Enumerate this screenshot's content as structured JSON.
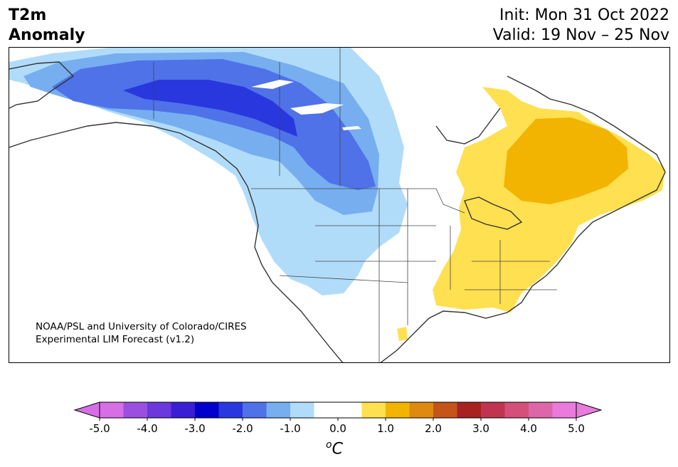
{
  "header": {
    "title_line1": "T2m",
    "title_line2": "Anomaly",
    "init_line": "Init: Mon 31 Oct 2022",
    "valid_line": "Valid: 19 Nov – 25 Nov"
  },
  "map": {
    "region": "North America",
    "credit_line1": "NOAA/PSL and University of Colorado/CIRES",
    "credit_line2": "Experimental LIM Forecast (v1.2)"
  },
  "colorbar": {
    "unit_base": "C",
    "unit_sup": "o",
    "tick_labels": [
      "-5.0",
      "-4.0",
      "-3.0",
      "-2.0",
      "-1.0",
      "0.0",
      "1.0",
      "2.0",
      "3.0",
      "4.0",
      "5.0"
    ],
    "colors": [
      "#d66ee6",
      "#9a4fe0",
      "#6a38dc",
      "#3a1ed4",
      "#0000cc",
      "#2838de",
      "#4f72e8",
      "#76aef0",
      "#b0dcfa",
      "#ffffff",
      "#ffffff",
      "#ffe050",
      "#f2b400",
      "#de8a10",
      "#c45418",
      "#a82222",
      "#c03450",
      "#d4507a",
      "#dc66a8",
      "#ea7adc"
    ]
  },
  "anomaly_colors": {
    "cold_light": "#b0dcfa",
    "cold_mid": "#76aef0",
    "cold_strong": "#4f72e8",
    "cold_core": "#2838de",
    "warm_light": "#ffe050",
    "warm_mid": "#f2b400"
  }
}
